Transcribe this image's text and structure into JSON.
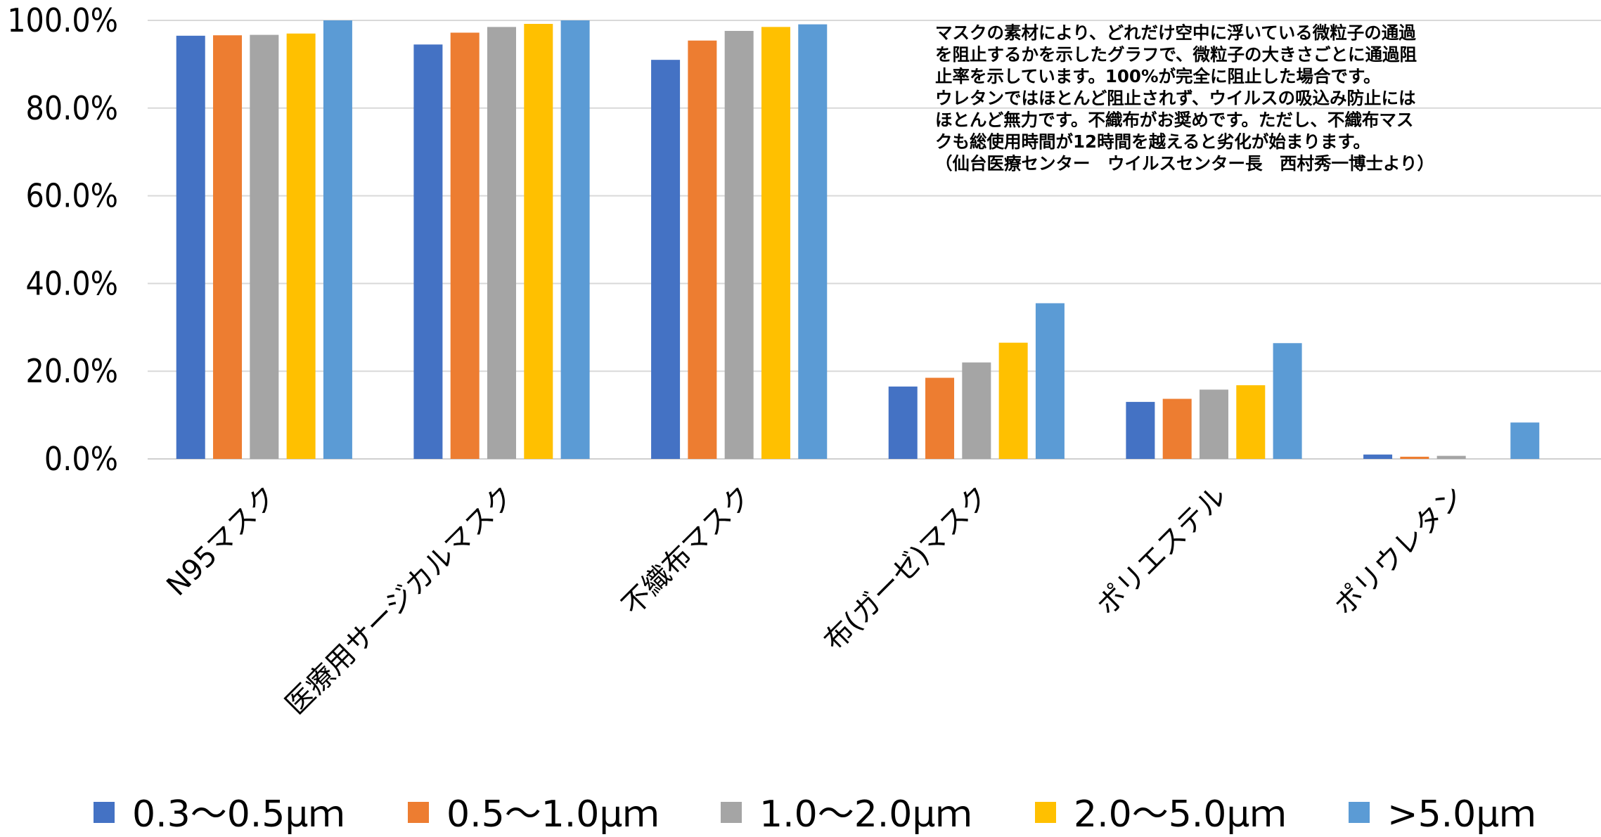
{
  "chart_data": {
    "type": "bar",
    "categories": [
      "N95マスク",
      "医療用サージカルマスク",
      "不織布マスク",
      "布(ガーゼ)マスク",
      "ポリエステル",
      "ポリウレタン"
    ],
    "series": [
      {
        "name": "0.3〜0.5μｍ",
        "color": "#4472c4",
        "values": [
          96.5,
          94.5,
          91.0,
          16.5,
          13.0,
          1.0
        ]
      },
      {
        "name": "0.5〜1.0μｍ",
        "color": "#ed7d31",
        "values": [
          96.6,
          97.2,
          95.4,
          18.5,
          13.7,
          0.5
        ]
      },
      {
        "name": "1.0〜2.0μｍ",
        "color": "#a5a5a5",
        "values": [
          96.7,
          98.5,
          97.6,
          22.0,
          15.8,
          0.7
        ]
      },
      {
        "name": "2.0〜5.0μｍ",
        "color": "#ffc000",
        "values": [
          97.0,
          99.2,
          98.5,
          26.5,
          16.8,
          0
        ]
      },
      {
        "name": ">5.0μｍ",
        "color": "#5b9bd5",
        "values": [
          100.0,
          100.0,
          99.1,
          35.5,
          26.4,
          8.3
        ]
      }
    ],
    "y_ticks": [
      "0.0%",
      "20.0%",
      "40.0%",
      "60.0%",
      "80.0%",
      "100.0%"
    ],
    "ylim": [
      0,
      100
    ],
    "grid": true,
    "legend_position": "bottom",
    "title": "",
    "xlabel": "",
    "ylabel": ""
  },
  "note": {
    "lines": [
      "マスクの素材により、どれだけ空中に浮いている微粒子の通過",
      "を阻止するかを示したグラフで、微粒子の大きさごとに通過阻",
      "止率を示しています。100%が完全に阻止した場合です。",
      "ウレタンではほとんど阻止されず、ウイルスの吸込み防止には",
      "ほとんど無力です。不織布がお奨めです。ただし、不織布マス",
      "クも総使用時間が12時間を越えると劣化が始まります。",
      "（仙台医療センター　ウイルスセンター長　西村秀一博士より）"
    ]
  }
}
